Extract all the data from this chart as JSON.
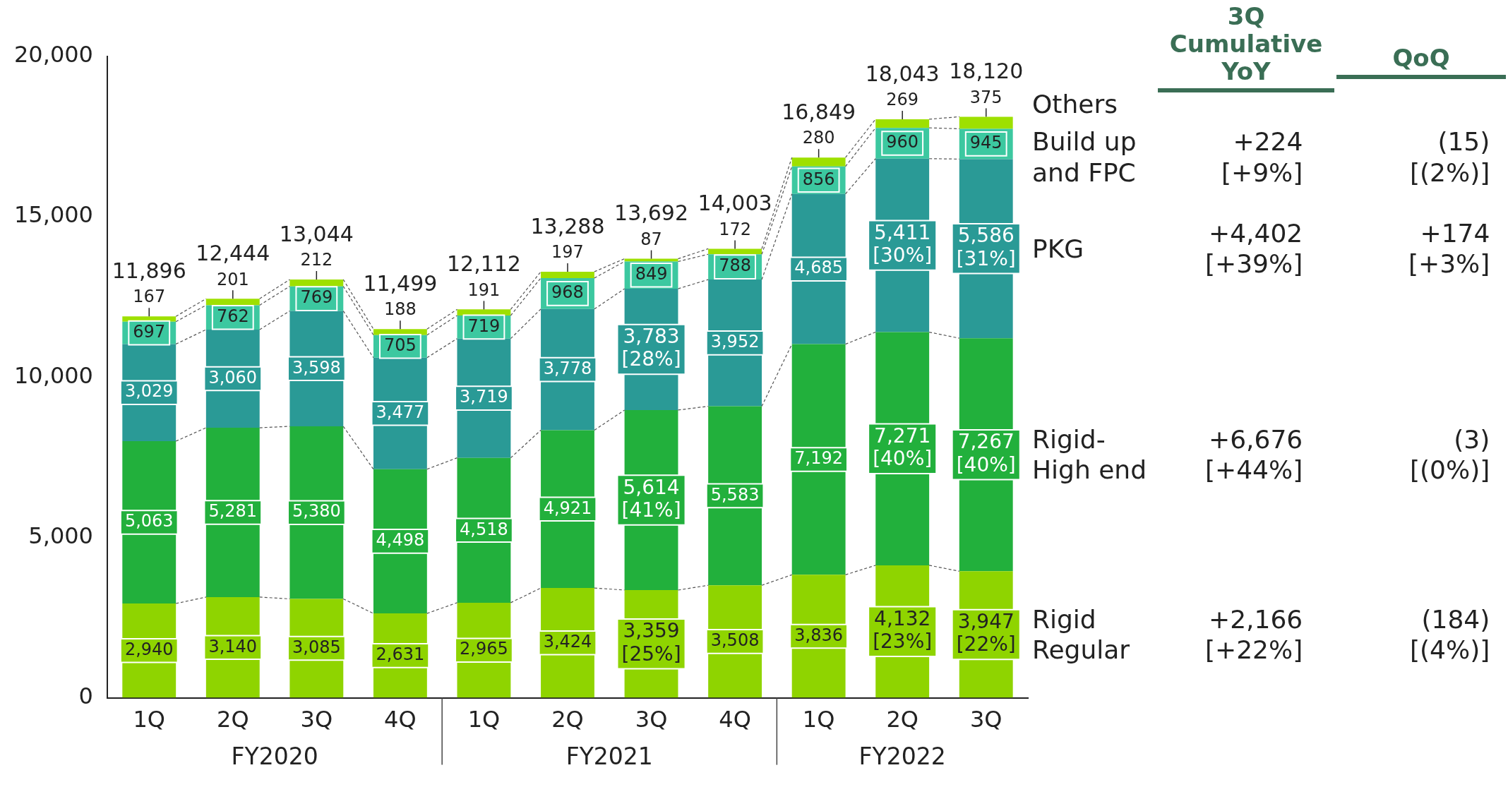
{
  "chart_data": {
    "type": "bar",
    "stacked": true,
    "categories": [
      "1Q",
      "2Q",
      "3Q",
      "4Q",
      "1Q",
      "2Q",
      "3Q",
      "4Q",
      "1Q",
      "2Q",
      "3Q"
    ],
    "series": [
      {
        "name": "Rigid Regular",
        "color": "#8fd400",
        "values": [
          2940,
          3140,
          3085,
          2631,
          2965,
          3424,
          3359,
          3508,
          3836,
          4132,
          3947
        ],
        "value_labels": [
          "2,940",
          "3,140",
          "3,085",
          "2,631",
          "2,965",
          "3,424",
          "3,359 [25%]",
          "3,508",
          "3,836",
          "4,132 [23%]",
          "3,947 [22%]"
        ]
      },
      {
        "name": "Rigid-High end",
        "color": "#22b03c",
        "values": [
          5063,
          5281,
          5380,
          4498,
          4518,
          4921,
          5614,
          5583,
          7192,
          7271,
          7267
        ],
        "value_labels": [
          "5,063",
          "5,281",
          "5,380",
          "4,498",
          "4,518",
          "4,921",
          "5,614 [41%]",
          "5,583",
          "7,192",
          "7,271 [40%]",
          "7,267 [40%]"
        ]
      },
      {
        "name": "PKG",
        "color": "#2a9a96",
        "values": [
          3029,
          3060,
          3598,
          3477,
          3719,
          3778,
          3783,
          3952,
          4685,
          5411,
          5586
        ],
        "value_labels": [
          "3,029",
          "3,060",
          "3,598",
          "3,477",
          "3,719",
          "3,778",
          "3,783 [28%]",
          "3,952",
          "4,685",
          "5,411 [30%]",
          "5,586 [31%]"
        ]
      },
      {
        "name": "Build up and FPC",
        "color": "#3cc8a0",
        "values": [
          697,
          762,
          769,
          705,
          719,
          968,
          849,
          788,
          856,
          960,
          945
        ],
        "value_labels": [
          "697",
          "762",
          "769",
          "705",
          "719",
          "968",
          "849",
          "788",
          "856",
          "960",
          "945"
        ]
      },
      {
        "name": "Others",
        "color": "#9ee000",
        "values": [
          167,
          201,
          212,
          188,
          191,
          197,
          87,
          172,
          280,
          269,
          375
        ],
        "value_labels": [
          "167",
          "201",
          "212",
          "188",
          "191",
          "197",
          "87",
          "172",
          "280",
          "269",
          "375"
        ]
      }
    ],
    "totals": [
      "11,896",
      "12,444",
      "13,044",
      "11,499",
      "12,112",
      "13,288",
      "13,692",
      "14,003",
      "16,849",
      "18,043",
      "18,120"
    ],
    "legend": "right",
    "ylim": [
      0,
      20000
    ],
    "yticks": [
      0,
      {
        "value": 5000,
        "label": "5,000"
      },
      {
        "value": 10000,
        "label": "10,000"
      },
      {
        "value": 15000,
        "label": "15,000"
      },
      {
        "value": 20000,
        "label": "20,000"
      }
    ],
    "annotations": [
      "FY2020",
      "FY2021",
      "FY2022",
      "3Q Cumulative YoY",
      "QoQ",
      "+224 [+9%]",
      "(15) [(2%)]",
      "+4,402 [+39%]",
      "+174 [+3%]",
      "+6,676 [+44%]",
      "(3) [(0%)]",
      "+2,166 [+22%]",
      "(184) [(4%)]"
    ]
  }
}
